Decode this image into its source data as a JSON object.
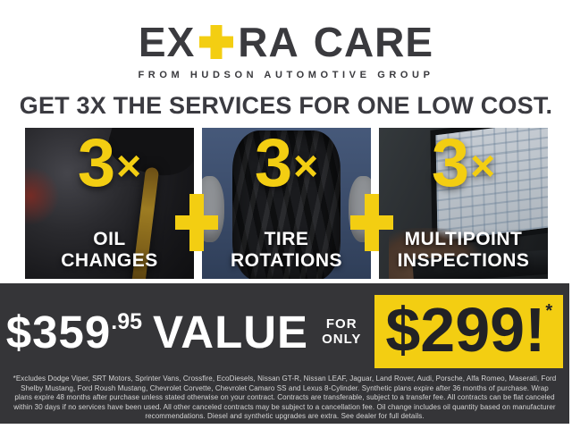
{
  "brand": {
    "name_prefix": "EX",
    "name_suffix_word1": "RA",
    "name_suffix_word2": "CARE",
    "tagline": "FROM HUDSON AUTOMOTIVE GROUP"
  },
  "headline": "GET 3X THE SERVICES FOR ONE LOW COST.",
  "panels": [
    {
      "multiplier_number": "3",
      "multiplier_times": "×",
      "label_lines": [
        "OIL",
        "CHANGES"
      ],
      "photo": "oil-pour-photo"
    },
    {
      "multiplier_number": "3",
      "multiplier_times": "×",
      "label_lines": [
        "TIRE",
        "ROTATIONS"
      ],
      "photo": "tire-hold-photo"
    },
    {
      "multiplier_number": "3",
      "multiplier_times": "×",
      "label_lines": [
        "MULTIPOINT",
        "INSPECTIONS"
      ],
      "photo": "laptop-inspection-photo"
    }
  ],
  "offer": {
    "value_dollars": "$359",
    "value_cents": ".95",
    "value_word": "VALUE",
    "for_word": "FOR",
    "only_word": "ONLY",
    "sale_price": "$299!",
    "footnote_marker": "*"
  },
  "disclaimer": "*Excludes Dodge Viper, SRT Motors, Sprinter Vans, Crossfire, EcoDiesels, Nissan GT-R, Nissan LEAF, Jaguar, Land Rover, Audi, Porsche, Alfa Romeo, Maserati, Ford Shelby Mustang, Ford Roush Mustang, Chevrolet Corvette, Chevrolet Camaro SS and Lexus 8-Cylinder. Synthetic plans expire after 36 months of purchase. Wrap plans expire 48 months after purchase unless stated otherwise on your contract. Contracts are transferable, subject to a transfer fee. All contracts can be flat canceled within 30 days if no services have been used. All other canceled contracts may be subject to a cancellation fee. Oil change includes oil quantity based on manufacturer recommendations. Diesel and synthetic upgrades are extra. See dealer for full details.",
  "colors": {
    "accent_yellow": "#F3CE12",
    "charcoal_text": "#3A3A3E",
    "footer_background": "#353538",
    "panel_label_white": "#FFFFFF"
  }
}
